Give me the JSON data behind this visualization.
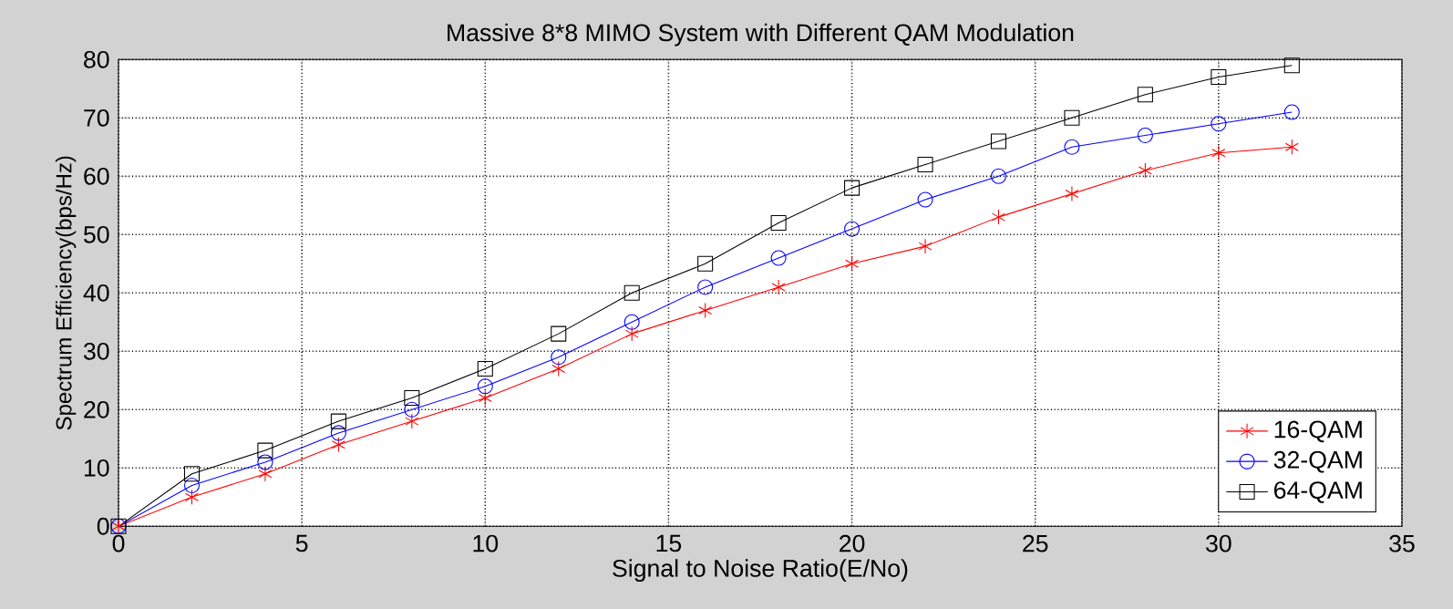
{
  "chart_data": {
    "type": "line",
    "title": "Massive 8*8 MIMO System with Different QAM Modulation",
    "xlabel": "Signal to Noise Ratio(E/No)",
    "ylabel": "Spectrum Efficiency(bps/Hz)",
    "x": [
      0,
      2,
      4,
      6,
      8,
      10,
      12,
      14,
      16,
      18,
      20,
      22,
      24,
      26,
      28,
      30,
      32
    ],
    "series": [
      {
        "name": "16-QAM",
        "color": "#ff0000",
        "marker": "cross",
        "values": [
          0,
          5,
          9,
          14,
          18,
          22,
          27,
          33,
          37,
          41,
          45,
          48,
          53,
          57,
          61,
          64,
          65
        ]
      },
      {
        "name": "32-QAM",
        "color": "#0000ff",
        "marker": "circle",
        "values": [
          0,
          7,
          11,
          16,
          20,
          24,
          29,
          35,
          41,
          46,
          51,
          56,
          60,
          65,
          67,
          69,
          71
        ]
      },
      {
        "name": "64-QAM",
        "color": "#000000",
        "marker": "square",
        "values": [
          0,
          9,
          13,
          18,
          22,
          27,
          33,
          40,
          45,
          52,
          58,
          62,
          66,
          70,
          74,
          77,
          79
        ]
      }
    ],
    "xlim": [
      0,
      35
    ],
    "ylim": [
      0,
      80
    ],
    "xticks": [
      0,
      5,
      10,
      15,
      20,
      25,
      30,
      35
    ],
    "yticks": [
      0,
      10,
      20,
      30,
      40,
      50,
      60,
      70,
      80
    ],
    "grid": true,
    "legend": "bottom right",
    "line_style": "solid"
  }
}
